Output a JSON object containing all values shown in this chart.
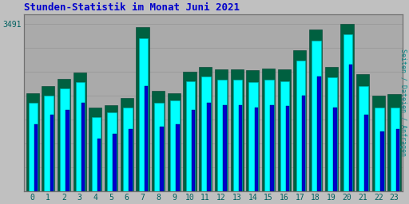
{
  "title": "Stunden-Statistik im Monat Juni 2021",
  "ylabel": "Seiten / Dateien / Anfragen",
  "hours": [
    0,
    1,
    2,
    3,
    4,
    5,
    6,
    7,
    8,
    9,
    10,
    11,
    12,
    13,
    14,
    15,
    16,
    17,
    18,
    19,
    20,
    21,
    22,
    23
  ],
  "seiten": [
    2050,
    2200,
    2350,
    2480,
    1750,
    1800,
    1950,
    3420,
    2100,
    2050,
    2500,
    2600,
    2550,
    2550,
    2520,
    2560,
    2540,
    2950,
    3380,
    2600,
    3491,
    2450,
    2000,
    2020
  ],
  "dateien": [
    1850,
    2000,
    2150,
    2280,
    1550,
    1650,
    1750,
    3200,
    1850,
    1900,
    2300,
    2400,
    2320,
    2320,
    2280,
    2320,
    2300,
    2720,
    3150,
    2380,
    3280,
    2200,
    1750,
    1750
  ],
  "anfragen": [
    1400,
    1600,
    1700,
    1850,
    1100,
    1200,
    1300,
    2200,
    1350,
    1400,
    1700,
    1850,
    1800,
    1800,
    1750,
    1800,
    1780,
    2000,
    2400,
    1750,
    2650,
    1600,
    1250,
    1300
  ],
  "color_seiten": "#006040",
  "color_dateien": "#00ffff",
  "color_anfragen": "#0066cc",
  "color_anfragen_thin": "#0000cc",
  "bg_color": "#c0c0c0",
  "plot_bg": "#aaaaaa",
  "title_color": "#0000cc",
  "ylabel_color": "#008888",
  "tick_color": "#006060",
  "grid_color": "#999999",
  "border_color": "#707070",
  "ylim": [
    0,
    3700
  ],
  "ytick_val": 3491,
  "ytick_label": "3491"
}
